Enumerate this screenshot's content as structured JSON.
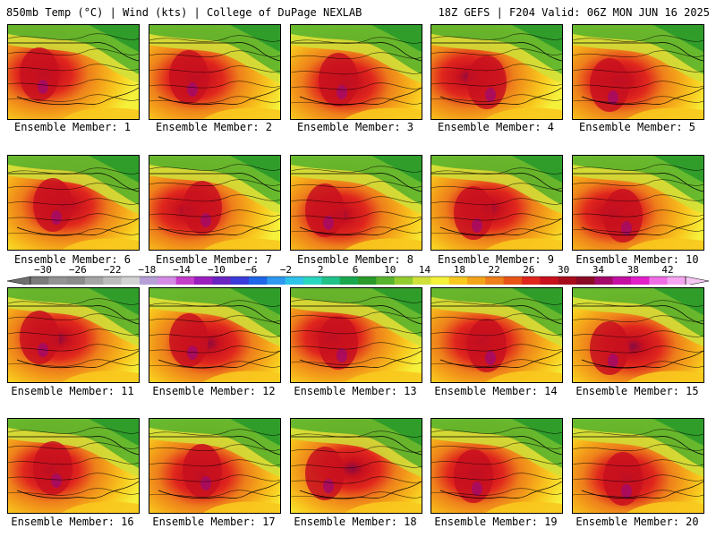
{
  "header": {
    "left": "850mb Temp (°C) | Wind (kts) | College of DuPage NEXLAB",
    "right": "18Z GEFS | F204 Valid: 06Z MON JUN 16 2025"
  },
  "colorbar": {
    "labels": [
      "−30",
      "−26",
      "−22",
      "−18",
      "−14",
      "−10",
      "−6",
      "−2",
      "2",
      "6",
      "10",
      "14",
      "18",
      "22",
      "26",
      "30",
      "34",
      "38",
      "42"
    ],
    "colors": [
      "#7b7b7b",
      "#939393",
      "#8c8c8c",
      "#a5a5a5",
      "#bcbcbc",
      "#d2d2d2",
      "#b6a0d6",
      "#d58ae6",
      "#c43ec9",
      "#9b1fbf",
      "#6a24c4",
      "#3b3bd9",
      "#1f66e8",
      "#2f98f0",
      "#2fc3ea",
      "#2bd6c0",
      "#21c28a",
      "#1aa84f",
      "#2a9a2a",
      "#58b42e",
      "#93cc30",
      "#cfe03a",
      "#f5f03a",
      "#f8c81e",
      "#f4a41a",
      "#ee7f1b",
      "#e85418",
      "#e0261d",
      "#c8101e",
      "#a60c1d",
      "#8a0a26",
      "#a30a6a",
      "#c410a3",
      "#e21fc9",
      "#f06ee5",
      "#f6a6f1"
    ]
  },
  "panels": [
    {
      "label": "Ensemble Member: 1"
    },
    {
      "label": "Ensemble Member: 2"
    },
    {
      "label": "Ensemble Member: 3"
    },
    {
      "label": "Ensemble Member: 4"
    },
    {
      "label": "Ensemble Member: 5"
    },
    {
      "label": "Ensemble Member: 6"
    },
    {
      "label": "Ensemble Member: 7"
    },
    {
      "label": "Ensemble Member: 8"
    },
    {
      "label": "Ensemble Member: 9"
    },
    {
      "label": "Ensemble Member: 10"
    },
    {
      "label": "Ensemble Member: 11"
    },
    {
      "label": "Ensemble Member: 12"
    },
    {
      "label": "Ensemble Member: 13"
    },
    {
      "label": "Ensemble Member: 14"
    },
    {
      "label": "Ensemble Member: 15"
    },
    {
      "label": "Ensemble Member: 16"
    },
    {
      "label": "Ensemble Member: 17"
    },
    {
      "label": "Ensemble Member: 18"
    },
    {
      "label": "Ensemble Member: 19"
    },
    {
      "label": "Ensemble Member: 20"
    }
  ]
}
